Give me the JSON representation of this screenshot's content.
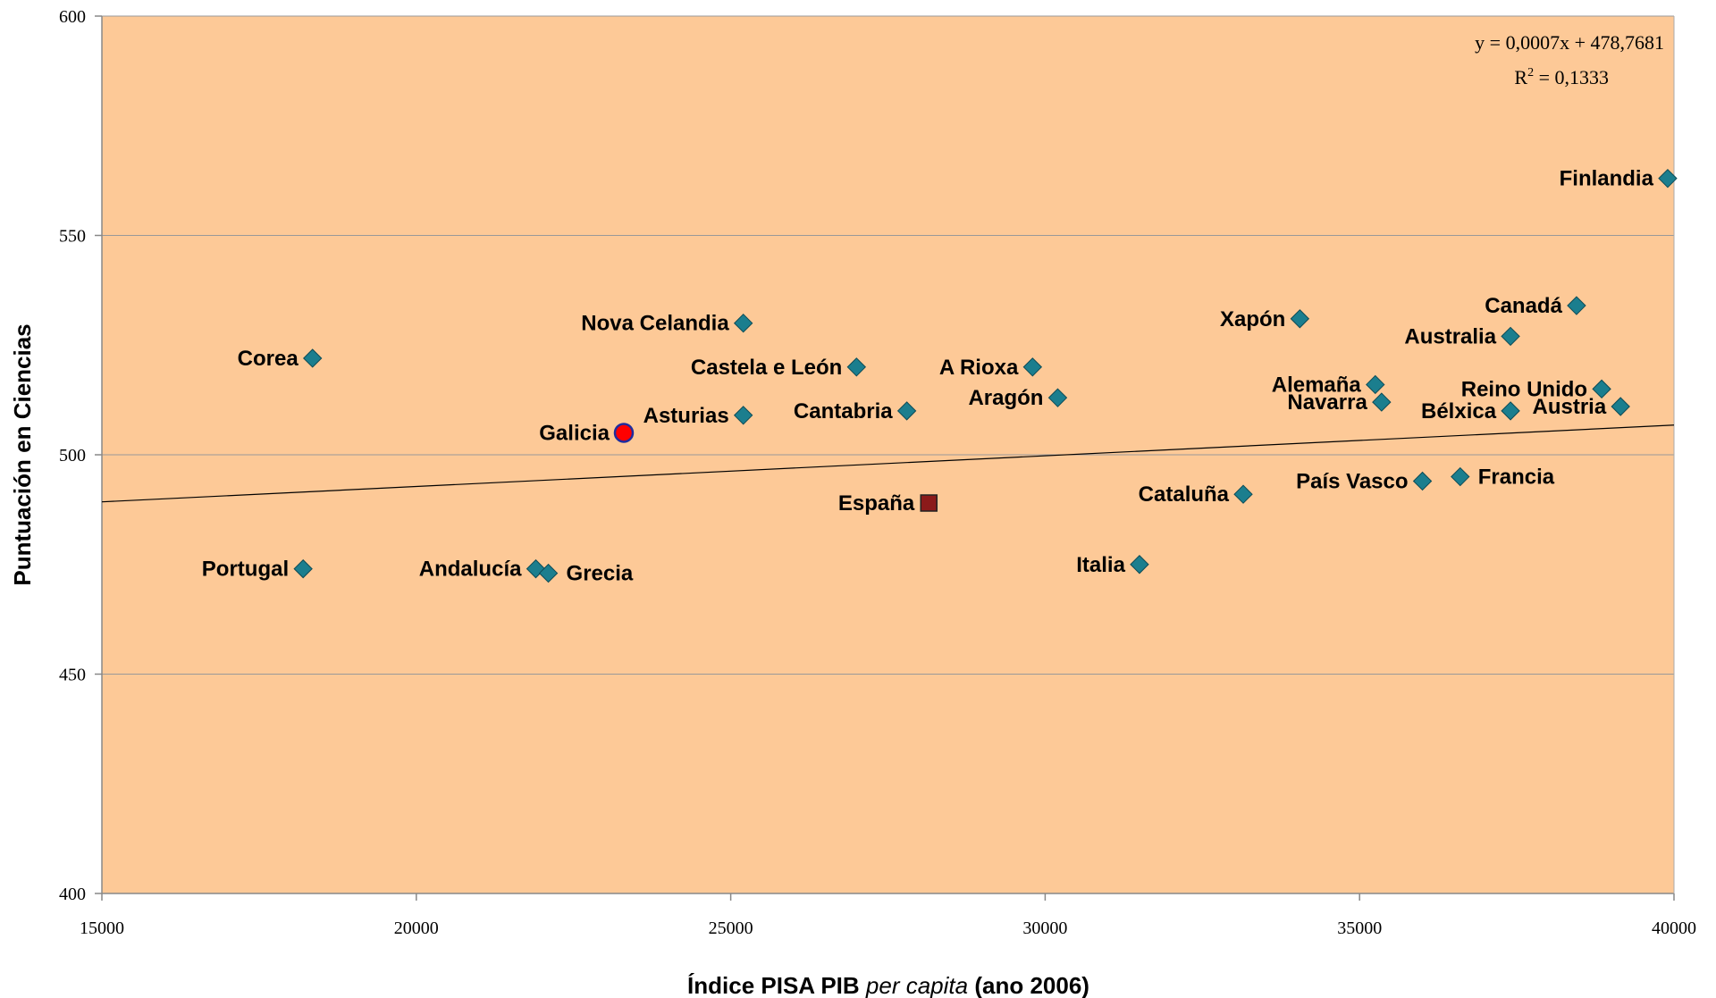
{
  "chart_data": {
    "type": "scatter",
    "xlabel": {
      "prefix": "Índice PISA PIB ",
      "italic": "per capita",
      "suffix": " (ano 2006)"
    },
    "ylabel": "Puntuación en Ciencias",
    "xlim": [
      15000,
      40000
    ],
    "ylim": [
      400,
      600
    ],
    "xticks": [
      15000,
      20000,
      25000,
      30000,
      35000,
      40000
    ],
    "yticks": [
      400,
      450,
      500,
      550,
      600
    ],
    "grid": "horizontal",
    "colors": {
      "plot_bg": "#FDC997",
      "gridline": "#999999",
      "marker": "#1B7E8E",
      "galicia": "#FF0000",
      "galicia_edge": "#1F2C9E",
      "espana": "#8B1A1A",
      "trendline": "#000000"
    },
    "trendline": {
      "slope": 0.0007,
      "intercept": 478.7681,
      "equation": "y = 0,0007x + 478,7681",
      "r2_label": "R",
      "r2_sup": "2",
      "r2_value": " = 0,1333"
    },
    "points": [
      {
        "label": "Finlandia",
        "x": 39900,
        "y": 563,
        "marker": "diamond",
        "anchor": "left"
      },
      {
        "label": "Canadá",
        "x": 38450,
        "y": 534,
        "marker": "diamond",
        "anchor": "left"
      },
      {
        "label": "Xapón",
        "x": 34050,
        "y": 531,
        "marker": "diamond",
        "anchor": "left"
      },
      {
        "label": "Nova Celandia",
        "x": 25200,
        "y": 530,
        "marker": "diamond",
        "anchor": "left"
      },
      {
        "label": "Australia",
        "x": 37400,
        "y": 527,
        "marker": "diamond",
        "anchor": "left"
      },
      {
        "label": "Corea",
        "x": 18350,
        "y": 522,
        "marker": "diamond",
        "anchor": "left"
      },
      {
        "label": "Castela e León",
        "x": 27000,
        "y": 520,
        "marker": "diamond",
        "anchor": "left"
      },
      {
        "label": "A Rioxa",
        "x": 29800,
        "y": 520,
        "marker": "diamond",
        "anchor": "left"
      },
      {
        "label": "Alemaña",
        "x": 35250,
        "y": 516,
        "marker": "diamond",
        "anchor": "left"
      },
      {
        "label": "Reino Unido",
        "x": 38850,
        "y": 515,
        "marker": "diamond",
        "anchor": "left"
      },
      {
        "label": "Aragón",
        "x": 30200,
        "y": 513,
        "marker": "diamond",
        "anchor": "left"
      },
      {
        "label": "Navarra",
        "x": 35350,
        "y": 512,
        "marker": "diamond",
        "anchor": "left"
      },
      {
        "label": "Austria",
        "x": 39150,
        "y": 511,
        "marker": "diamond",
        "anchor": "left"
      },
      {
        "label": "Bélxica",
        "x": 37400,
        "y": 510,
        "marker": "diamond",
        "anchor": "left"
      },
      {
        "label": "Cantabria",
        "x": 27800,
        "y": 510,
        "marker": "diamond",
        "anchor": "left"
      },
      {
        "label": "Asturias",
        "x": 25200,
        "y": 509,
        "marker": "diamond",
        "anchor": "left"
      },
      {
        "label": "Galicia",
        "x": 23300,
        "y": 505,
        "marker": "circle",
        "anchor": "left"
      },
      {
        "label": "Francia",
        "x": 36600,
        "y": 495,
        "marker": "diamond",
        "anchor": "right"
      },
      {
        "label": "País Vasco",
        "x": 36000,
        "y": 494,
        "marker": "diamond",
        "anchor": "left"
      },
      {
        "label": "Cataluña",
        "x": 33150,
        "y": 491,
        "marker": "diamond",
        "anchor": "left"
      },
      {
        "label": "España",
        "x": 28150,
        "y": 489,
        "marker": "square",
        "anchor": "left"
      },
      {
        "label": "Italia",
        "x": 31500,
        "y": 475,
        "marker": "diamond",
        "anchor": "left"
      },
      {
        "label": "Portugal",
        "x": 18200,
        "y": 474,
        "marker": "diamond",
        "anchor": "left"
      },
      {
        "label": "Andalucía",
        "x": 21900,
        "y": 474,
        "marker": "diamond",
        "anchor": "left"
      },
      {
        "label": "Grecia",
        "x": 22100,
        "y": 473,
        "marker": "diamond",
        "anchor": "right"
      }
    ]
  }
}
